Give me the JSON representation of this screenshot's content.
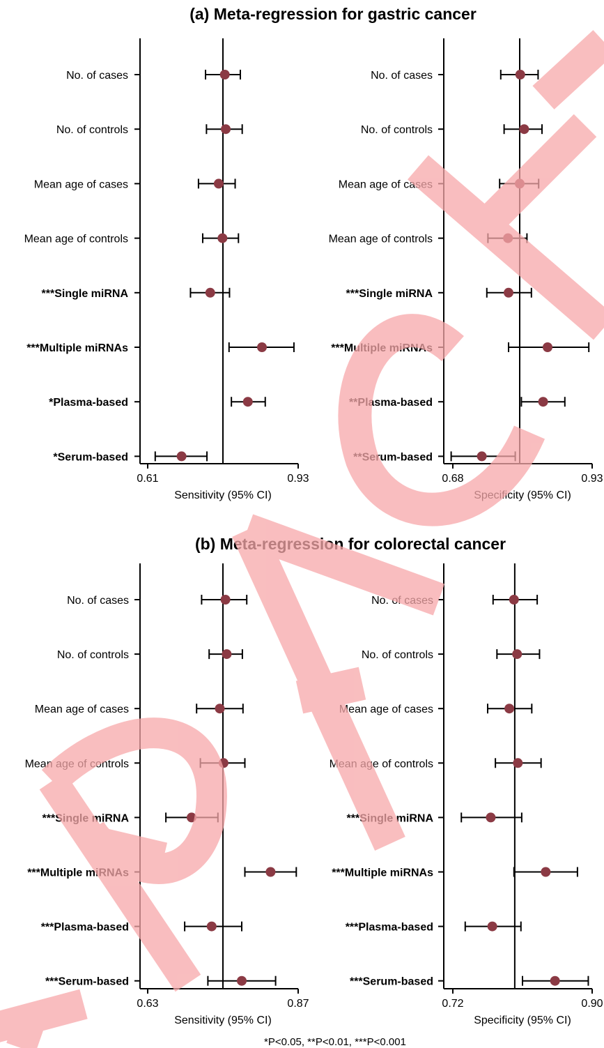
{
  "footnote": "*P<0.05, **P<0.01, ***P<0.001",
  "colors": {
    "point": "#8b3a44",
    "line": "#000000",
    "watermark": "#f7a8aa"
  },
  "watermark_text": "RETRACTED",
  "chart_data": [
    {
      "type": "forest",
      "panel": "a",
      "title": "(a) Meta-regression for gastric cancer",
      "xlabel": "Sensitivity (95% CI)",
      "xlim": [
        0.61,
        0.93
      ],
      "ticks": [
        "0.61",
        "0.93"
      ],
      "reference": 0.77,
      "rows": [
        {
          "label": "No. of cases",
          "bold": false,
          "est": 0.774,
          "lo": 0.733,
          "hi": 0.807
        },
        {
          "label": "No. of controls",
          "bold": false,
          "est": 0.776,
          "lo": 0.735,
          "hi": 0.811
        },
        {
          "label": "Mean age of cases",
          "bold": false,
          "est": 0.761,
          "lo": 0.718,
          "hi": 0.796
        },
        {
          "label": "Mean age of controls",
          "bold": false,
          "est": 0.769,
          "lo": 0.727,
          "hi": 0.803
        },
        {
          "label": "***Single miRNA",
          "bold": true,
          "est": 0.743,
          "lo": 0.701,
          "hi": 0.784
        },
        {
          "label": "***Multiple miRNAs",
          "bold": true,
          "est": 0.853,
          "lo": 0.783,
          "hi": 0.921
        },
        {
          "label": "*Plasma-based",
          "bold": true,
          "est": 0.823,
          "lo": 0.788,
          "hi": 0.86
        },
        {
          "label": "*Serum-based",
          "bold": true,
          "est": 0.682,
          "lo": 0.626,
          "hi": 0.736
        }
      ]
    },
    {
      "type": "forest",
      "panel": "a",
      "title": "",
      "xlabel": "Specificity (95% CI)",
      "xlim": [
        0.68,
        0.93
      ],
      "ticks": [
        "0.68",
        "0.93"
      ],
      "reference": 0.8,
      "rows": [
        {
          "label": "No. of cases",
          "bold": false,
          "est": 0.801,
          "lo": 0.766,
          "hi": 0.833
        },
        {
          "label": "No. of controls",
          "bold": false,
          "est": 0.808,
          "lo": 0.772,
          "hi": 0.84
        },
        {
          "label": "Mean age of cases",
          "bold": false,
          "est": 0.8,
          "lo": 0.764,
          "hi": 0.834
        },
        {
          "label": "Mean age of controls",
          "bold": false,
          "est": 0.779,
          "lo": 0.743,
          "hi": 0.813
        },
        {
          "label": "***Single miRNA",
          "bold": true,
          "est": 0.78,
          "lo": 0.741,
          "hi": 0.821
        },
        {
          "label": "***Multiple miRNAs",
          "bold": true,
          "est": 0.85,
          "lo": 0.78,
          "hi": 0.924
        },
        {
          "label": "**Plasma-based",
          "bold": true,
          "est": 0.842,
          "lo": 0.803,
          "hi": 0.881
        },
        {
          "label": "**Serum-based",
          "bold": true,
          "est": 0.732,
          "lo": 0.677,
          "hi": 0.792
        }
      ]
    },
    {
      "type": "forest",
      "panel": "b",
      "title": "(b) Meta-regression for colorectal cancer",
      "xlabel": "Sensitivity (95% CI)",
      "xlim": [
        0.63,
        0.87
      ],
      "ticks": [
        "0.63",
        "0.87"
      ],
      "reference": 0.75,
      "rows": [
        {
          "label": "No. of cases",
          "bold": false,
          "est": 0.754,
          "lo": 0.716,
          "hi": 0.788
        },
        {
          "label": "No. of controls",
          "bold": false,
          "est": 0.756,
          "lo": 0.728,
          "hi": 0.781
        },
        {
          "label": "Mean age of cases",
          "bold": false,
          "est": 0.745,
          "lo": 0.708,
          "hi": 0.782
        },
        {
          "label": "Mean age of controls",
          "bold": false,
          "est": 0.751,
          "lo": 0.714,
          "hi": 0.785
        },
        {
          "label": "***Single miRNA",
          "bold": true,
          "est": 0.7,
          "lo": 0.659,
          "hi": 0.742
        },
        {
          "label": "***Multiple miRNAs",
          "bold": true,
          "est": 0.826,
          "lo": 0.785,
          "hi": 0.867
        },
        {
          "label": "***Plasma-based",
          "bold": true,
          "est": 0.732,
          "lo": 0.689,
          "hi": 0.78
        },
        {
          "label": "***Serum-based",
          "bold": true,
          "est": 0.78,
          "lo": 0.726,
          "hi": 0.834
        }
      ]
    },
    {
      "type": "forest",
      "panel": "b",
      "title": "",
      "xlabel": "Specificity (95% CI)",
      "xlim": [
        0.72,
        0.9
      ],
      "ticks": [
        "0.72",
        "0.90"
      ],
      "reference": 0.8,
      "rows": [
        {
          "label": "No. of cases",
          "bold": false,
          "est": 0.799,
          "lo": 0.772,
          "hi": 0.829
        },
        {
          "label": "No. of controls",
          "bold": false,
          "est": 0.803,
          "lo": 0.777,
          "hi": 0.832
        },
        {
          "label": "Mean age of cases",
          "bold": false,
          "est": 0.793,
          "lo": 0.765,
          "hi": 0.822
        },
        {
          "label": "Mean age of controls",
          "bold": false,
          "est": 0.804,
          "lo": 0.775,
          "hi": 0.834
        },
        {
          "label": "***Single miRNA",
          "bold": true,
          "est": 0.769,
          "lo": 0.731,
          "hi": 0.809
        },
        {
          "label": "***Multiple miRNAs",
          "bold": true,
          "est": 0.84,
          "lo": 0.799,
          "hi": 0.881
        },
        {
          "label": "***Plasma-based",
          "bold": true,
          "est": 0.771,
          "lo": 0.736,
          "hi": 0.808
        },
        {
          "label": "***Serum-based",
          "bold": true,
          "est": 0.852,
          "lo": 0.81,
          "hi": 0.895
        }
      ]
    }
  ]
}
